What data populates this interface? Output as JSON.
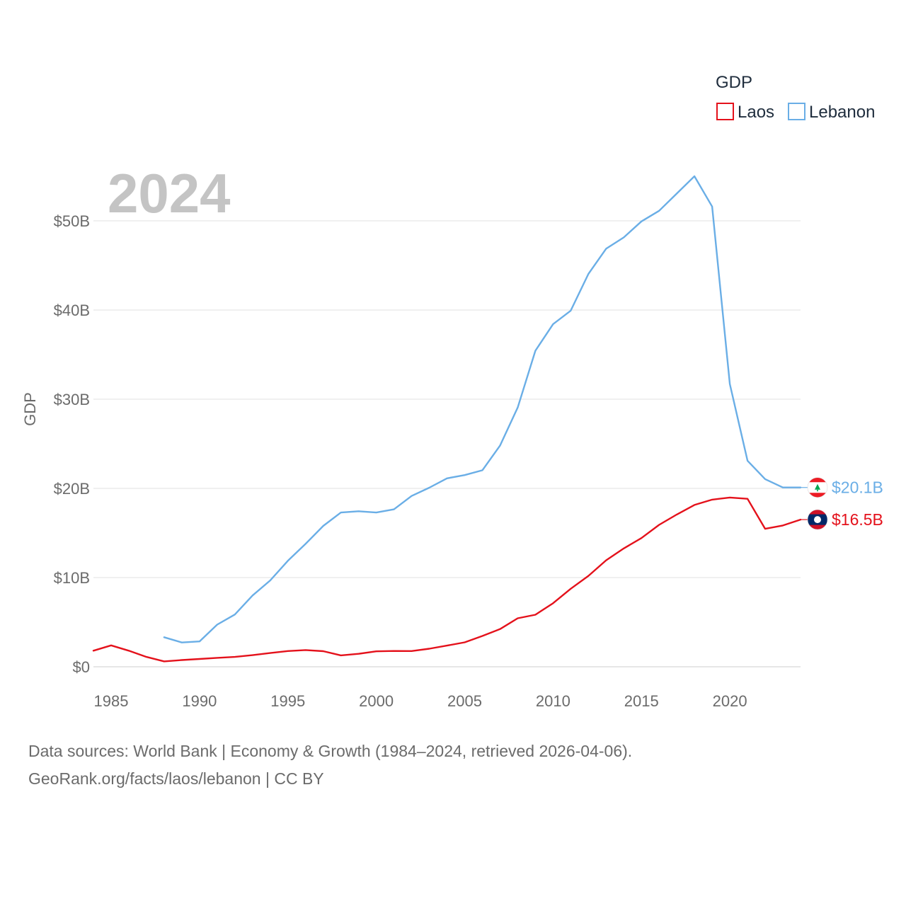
{
  "chart_data": {
    "type": "line",
    "current_year": "2024",
    "ylabel": "GDP",
    "xlabel": "",
    "ylim": [
      0,
      55000000000
    ],
    "xlim": [
      1984,
      2024
    ],
    "y_ticks": [
      {
        "value": 0,
        "label": "$0"
      },
      {
        "value": 10000000000,
        "label": "$10B"
      },
      {
        "value": 20000000000,
        "label": "$20B"
      },
      {
        "value": 30000000000,
        "label": "$30B"
      },
      {
        "value": 40000000000,
        "label": "$40B"
      },
      {
        "value": 50000000000,
        "label": "$50B"
      }
    ],
    "x_ticks": [
      {
        "value": 1985,
        "label": "1985"
      },
      {
        "value": 1990,
        "label": "1990"
      },
      {
        "value": 1995,
        "label": "1995"
      },
      {
        "value": 2000,
        "label": "2000"
      },
      {
        "value": 2005,
        "label": "2005"
      },
      {
        "value": 2010,
        "label": "2010"
      },
      {
        "value": 2015,
        "label": "2015"
      },
      {
        "value": 2020,
        "label": "2020"
      }
    ],
    "legend": {
      "title": "GDP",
      "position": "top-right"
    },
    "series": [
      {
        "name": "Laos",
        "color": "#e4111b",
        "end_label": "$16.5B",
        "flag": "laos-flag-icon",
        "points": [
          [
            1984,
            1.8
          ],
          [
            1985,
            2.4
          ],
          [
            1986,
            1.8
          ],
          [
            1987,
            1.1
          ],
          [
            1988,
            0.6
          ],
          [
            1989,
            0.75
          ],
          [
            1990,
            0.87
          ],
          [
            1991,
            1.0
          ],
          [
            1992,
            1.1
          ],
          [
            1993,
            1.3
          ],
          [
            1994,
            1.54
          ],
          [
            1995,
            1.76
          ],
          [
            1996,
            1.87
          ],
          [
            1997,
            1.75
          ],
          [
            1998,
            1.28
          ],
          [
            1999,
            1.45
          ],
          [
            2000,
            1.73
          ],
          [
            2001,
            1.77
          ],
          [
            2002,
            1.76
          ],
          [
            2003,
            2.02
          ],
          [
            2004,
            2.37
          ],
          [
            2005,
            2.74
          ],
          [
            2006,
            3.45
          ],
          [
            2007,
            4.22
          ],
          [
            2008,
            5.44
          ],
          [
            2009,
            5.83
          ],
          [
            2010,
            7.13
          ],
          [
            2011,
            8.75
          ],
          [
            2012,
            10.19
          ],
          [
            2013,
            11.94
          ],
          [
            2014,
            13.27
          ],
          [
            2015,
            14.43
          ],
          [
            2016,
            15.91
          ],
          [
            2017,
            17.07
          ],
          [
            2018,
            18.14
          ],
          [
            2019,
            18.74
          ],
          [
            2020,
            18.98
          ],
          [
            2021,
            18.83
          ],
          [
            2022,
            15.47
          ],
          [
            2023,
            15.84
          ],
          [
            2024,
            16.5
          ]
        ]
      },
      {
        "name": "Lebanon",
        "color": "#6aaee6",
        "end_label": "$20.1B",
        "flag": "lebanon-flag-icon",
        "points": [
          [
            1988,
            3.31
          ],
          [
            1989,
            2.72
          ],
          [
            1990,
            2.84
          ],
          [
            1991,
            4.72
          ],
          [
            1992,
            5.86
          ],
          [
            1993,
            7.99
          ],
          [
            1994,
            9.68
          ],
          [
            1995,
            11.88
          ],
          [
            1996,
            13.78
          ],
          [
            1997,
            15.79
          ],
          [
            1998,
            17.29
          ],
          [
            1999,
            17.44
          ],
          [
            2000,
            17.29
          ],
          [
            2001,
            17.65
          ],
          [
            2002,
            19.15
          ],
          [
            2003,
            20.08
          ],
          [
            2004,
            21.13
          ],
          [
            2005,
            21.49
          ],
          [
            2006,
            22.03
          ],
          [
            2007,
            24.79
          ],
          [
            2008,
            29.06
          ],
          [
            2009,
            35.44
          ],
          [
            2010,
            38.42
          ],
          [
            2011,
            39.93
          ],
          [
            2012,
            44.05
          ],
          [
            2013,
            46.87
          ],
          [
            2014,
            48.14
          ],
          [
            2015,
            49.94
          ],
          [
            2016,
            51.13
          ],
          [
            2017,
            53.06
          ],
          [
            2018,
            55.0
          ],
          [
            2019,
            51.6
          ],
          [
            2020,
            31.71
          ],
          [
            2021,
            23.1
          ],
          [
            2022,
            21.04
          ],
          [
            2023,
            20.1
          ],
          [
            2024,
            20.1
          ]
        ]
      }
    ]
  },
  "footer": {
    "line1": "Data sources: World Bank | Economy & Growth (1984–2024, retrieved 2026-04-06).",
    "line2": "GeoRank.org/facts/laos/lebanon | CC BY"
  }
}
